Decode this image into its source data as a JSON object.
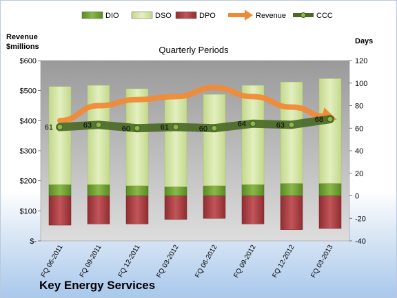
{
  "company_name": "Key Energy Services",
  "colors": {
    "dio": "#6c9a2c",
    "dso": "#d2e4a4",
    "dpo": "#a83b3f",
    "revenue": "#f08a36",
    "ccc": "#4b6a27"
  },
  "chart_data": {
    "type": "bar",
    "title": "Quarterly Periods",
    "left_axis": {
      "label_lines": [
        "Revenue",
        "$millions"
      ],
      "ticks": [
        "$-",
        "$100",
        "$200",
        "$300",
        "$400",
        "$500",
        "$600"
      ],
      "range": [
        0,
        600
      ]
    },
    "right_axis": {
      "label": "Days",
      "ticks": [
        "-40",
        "-20",
        "0",
        "20",
        "40",
        "60",
        "80",
        "100",
        "120"
      ],
      "range": [
        -40,
        120
      ]
    },
    "categories": [
      "FQ 06-2011",
      "FQ 09-2011",
      "FQ 12-2011",
      "FQ 03-2012",
      "FQ 06-2012",
      "FQ 09-2012",
      "FQ 12-2012",
      "FQ 03-2013"
    ],
    "legend": [
      {
        "key": "dio",
        "label": "DIO",
        "kind": "bar"
      },
      {
        "key": "dso",
        "label": "DSO",
        "kind": "bar"
      },
      {
        "key": "dpo",
        "label": "DPO",
        "kind": "bar"
      },
      {
        "key": "revenue",
        "label": "Revenue",
        "kind": "arrow"
      },
      {
        "key": "ccc",
        "label": "CCC",
        "kind": "line"
      }
    ],
    "series": [
      {
        "name": "DIO",
        "axis": "days",
        "values": [
          10,
          10,
          9,
          8,
          9,
          10,
          11,
          11
        ]
      },
      {
        "name": "DSO",
        "axis": "days",
        "values": [
          87,
          88,
          86,
          82,
          81,
          88,
          90,
          93
        ]
      },
      {
        "name": "DPO",
        "axis": "days",
        "values": [
          -26,
          -25,
          -25,
          -21,
          -20,
          -25,
          -30,
          -29
        ]
      },
      {
        "name": "Revenue",
        "axis": "revenue",
        "values": [
          400,
          450,
          470,
          480,
          510,
          480,
          445,
          410
        ]
      },
      {
        "name": "CCC",
        "axis": "days",
        "values": [
          61,
          63,
          60,
          61,
          60,
          64,
          63,
          68
        ]
      }
    ],
    "ccc_labels": [
      "61",
      "63",
      "60",
      "61",
      "60",
      "64",
      "63",
      "68"
    ],
    "grid": false,
    "legend_position": "top"
  }
}
